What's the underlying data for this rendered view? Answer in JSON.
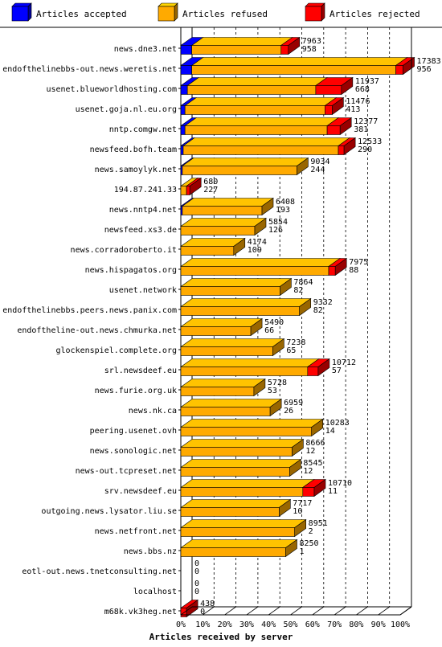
{
  "colors": {
    "accepted": "#0000ff",
    "refused": "#ffaa00",
    "rejected": "#ff0000"
  },
  "chart_data": {
    "type": "bar",
    "orientation": "horizontal",
    "stacked": true,
    "xlabel": "Articles received by server",
    "xlim": [
      0,
      100
    ],
    "x_unit": "%",
    "grid": true,
    "legend_position": "top",
    "ticks": [
      "0%",
      "10%",
      "20%",
      "30%",
      "40%",
      "50%",
      "60%",
      "70%",
      "80%",
      "90%",
      "100%"
    ],
    "series": [
      {
        "name": "Articles accepted",
        "key": "accepted"
      },
      {
        "name": "Articles refused",
        "key": "refused"
      },
      {
        "name": "Articles rejected",
        "key": "rejected"
      }
    ],
    "rows": [
      {
        "server": "news.dne3.net",
        "total": "7963",
        "rejected": "958",
        "pct": {
          "accepted": 5.0,
          "refused": 40.7,
          "rejected": 3.3
        }
      },
      {
        "server": "endofthelinebbs-out.news.weretis.net",
        "total": "17383",
        "rejected": "956",
        "pct": {
          "accepted": 5.0,
          "refused": 93.0,
          "rejected": 3.3
        }
      },
      {
        "server": "usenet.blueworldhosting.com",
        "total": "11937",
        "rejected": "668",
        "pct": {
          "accepted": 3.0,
          "refused": 58.5,
          "rejected": 11.7
        }
      },
      {
        "server": "usenet.goja.nl.eu.org",
        "total": "11476",
        "rejected": "413",
        "pct": {
          "accepted": 1.9,
          "refused": 63.8,
          "rejected": 3.3
        }
      },
      {
        "server": "nntp.comgw.net",
        "total": "12377",
        "rejected": "381",
        "pct": {
          "accepted": 1.9,
          "refused": 64.8,
          "rejected": 5.9
        }
      },
      {
        "server": "newsfeed.bofh.team",
        "total": "12533",
        "rejected": "290",
        "pct": {
          "accepted": 1.1,
          "refused": 70.7,
          "rejected": 2.6
        }
      },
      {
        "server": "news.samoylyk.net",
        "total": "9034",
        "rejected": "244",
        "pct": {
          "accepted": 0.7,
          "refused": 52.2,
          "rejected": 0
        }
      },
      {
        "server": "194.87.241.33",
        "total": "680",
        "rejected": "227",
        "pct": {
          "accepted": 0,
          "refused": 2.6,
          "rejected": 1.5
        }
      },
      {
        "server": "news.nntp4.net",
        "total": "6408",
        "rejected": "193",
        "pct": {
          "accepted": 0.7,
          "refused": 36.3,
          "rejected": 0
        }
      },
      {
        "server": "newsfeed.xs3.de",
        "total": "5854",
        "rejected": "126",
        "pct": {
          "accepted": 0,
          "refused": 33.7,
          "rejected": 0
        }
      },
      {
        "server": "news.corradoroberto.it",
        "total": "4174",
        "rejected": "109",
        "pct": {
          "accepted": 0,
          "refused": 24.1,
          "rejected": 0
        }
      },
      {
        "server": "news.hispagatos.org",
        "total": "7975",
        "rejected": "88",
        "pct": {
          "accepted": 0,
          "refused": 67.4,
          "rejected": 3.0
        }
      },
      {
        "server": "usenet.network",
        "total": "7864",
        "rejected": "82",
        "pct": {
          "accepted": 0,
          "refused": 45.2,
          "rejected": 0
        }
      },
      {
        "server": "endofthelinebbs.peers.news.panix.com",
        "total": "9332",
        "rejected": "82",
        "pct": {
          "accepted": 0,
          "refused": 54.1,
          "rejected": 0
        }
      },
      {
        "server": "endoftheline-out.news.chmurka.net",
        "total": "5490",
        "rejected": "66",
        "pct": {
          "accepted": 0,
          "refused": 31.9,
          "rejected": 0
        }
      },
      {
        "server": "glockenspiel.complete.org",
        "total": "7238",
        "rejected": "65",
        "pct": {
          "accepted": 0,
          "refused": 41.9,
          "rejected": 0
        }
      },
      {
        "server": "srl.newsdeef.eu",
        "total": "10712",
        "rejected": "57",
        "pct": {
          "accepted": 0,
          "refused": 57.8,
          "rejected": 4.8
        }
      },
      {
        "server": "news.furie.org.uk",
        "total": "5728",
        "rejected": "53",
        "pct": {
          "accepted": 0,
          "refused": 33.3,
          "rejected": 0
        }
      },
      {
        "server": "news.nk.ca",
        "total": "6959",
        "rejected": "26",
        "pct": {
          "accepted": 0,
          "refused": 40.7,
          "rejected": 0
        }
      },
      {
        "server": "peering.usenet.ovh",
        "total": "10283",
        "rejected": "14",
        "pct": {
          "accepted": 0,
          "refused": 59.6,
          "rejected": 0
        }
      },
      {
        "server": "news.sonologic.net",
        "total": "8666",
        "rejected": "12",
        "pct": {
          "accepted": 0,
          "refused": 50.7,
          "rejected": 0
        }
      },
      {
        "server": "news-out.tcpreset.net",
        "total": "8545",
        "rejected": "12",
        "pct": {
          "accepted": 0,
          "refused": 49.6,
          "rejected": 0
        }
      },
      {
        "server": "srv.newsdeef.eu",
        "total": "10710",
        "rejected": "11",
        "pct": {
          "accepted": 0,
          "refused": 55.6,
          "rejected": 5.2
        }
      },
      {
        "server": "outgoing.news.lysator.liu.se",
        "total": "7717",
        "rejected": "10",
        "pct": {
          "accepted": 0,
          "refused": 44.8,
          "rejected": 0
        }
      },
      {
        "server": "news.netfront.net",
        "total": "8951",
        "rejected": "2",
        "pct": {
          "accepted": 0,
          "refused": 51.9,
          "rejected": 0
        }
      },
      {
        "server": "news.bbs.nz",
        "total": "8250",
        "rejected": "1",
        "pct": {
          "accepted": 0,
          "refused": 47.8,
          "rejected": 0
        }
      },
      {
        "server": "eotl-out.news.tnetconsulting.net",
        "total": "0",
        "rejected": "0",
        "pct": {
          "accepted": 0,
          "refused": 0,
          "rejected": 0
        }
      },
      {
        "server": "localhost",
        "total": "0",
        "rejected": "0",
        "pct": {
          "accepted": 0,
          "refused": 0,
          "rejected": 0
        }
      },
      {
        "server": "m68k.vk3heg.net",
        "total": "438",
        "rejected": "0",
        "pct": {
          "accepted": 0,
          "refused": 0,
          "rejected": 2.6
        }
      }
    ]
  }
}
